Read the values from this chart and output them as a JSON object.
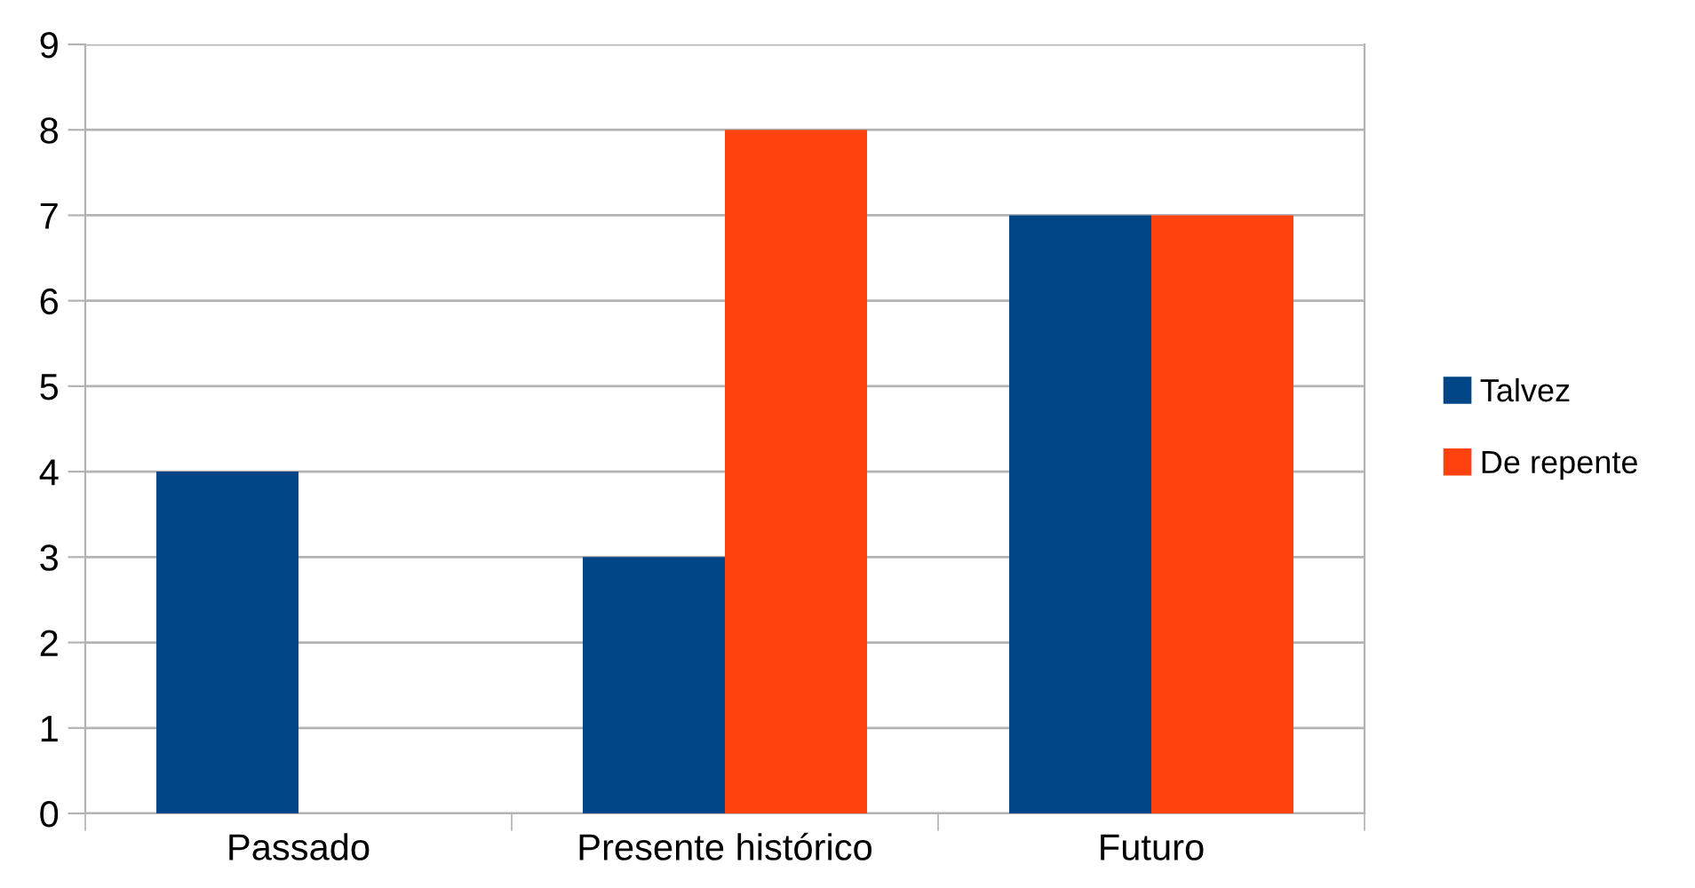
{
  "chart_data": {
    "type": "bar",
    "categories": [
      "Passado",
      "Presente histórico",
      "Futuro"
    ],
    "series": [
      {
        "name": "Talvez",
        "color": "#004586",
        "values": [
          4,
          3,
          7
        ]
      },
      {
        "name": "De repente",
        "color": "#ff420e",
        "values": [
          0,
          8,
          7
        ]
      }
    ],
    "ylim": [
      0,
      9
    ],
    "yticks": [
      0,
      1,
      2,
      3,
      4,
      5,
      6,
      7,
      8,
      9
    ],
    "grid": "y",
    "legend": "right"
  }
}
